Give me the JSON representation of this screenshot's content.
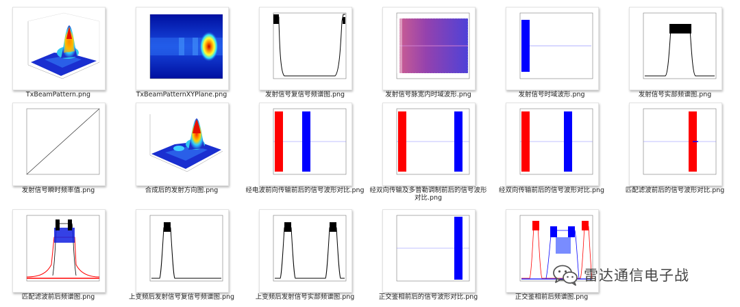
{
  "files": [
    {
      "name": "TxBeamPattern.png",
      "icon": "3d-surface-plot-thumbnail"
    },
    {
      "name": "TxBeamPatternXYPlane.png",
      "icon": "xy-plane-heatmap-thumbnail"
    },
    {
      "name": "发射信号复信号频谱图.png",
      "icon": "spectrum-plot-thumbnail"
    },
    {
      "name": "发射信号脉宽内时域波形.png",
      "icon": "dense-waveform-thumbnail"
    },
    {
      "name": "发射信号时域波形.png",
      "icon": "pulse-waveform-thumbnail"
    },
    {
      "name": "发射信号实部频谱图.png",
      "icon": "spectrum-plot-thumbnail"
    },
    {
      "name": "发射信号瞬时频率值.png",
      "icon": "line-plot-thumbnail"
    },
    {
      "name": "合成后的发射方向图.png",
      "icon": "3d-surface-plot-thumbnail"
    },
    {
      "name": "经电波前向传输前后的信号波形对比.png",
      "icon": "pulse-compare-thumbnail"
    },
    {
      "name": "经双向传输及多普勒调制前后的信号波形对比.png",
      "icon": "pulse-compare-thumbnail"
    },
    {
      "name": "经双向传输前后的信号波形对比.png",
      "icon": "pulse-compare-thumbnail"
    },
    {
      "name": "匹配滤波前后的信号波形对比.png",
      "icon": "pulse-compare-thumbnail"
    },
    {
      "name": "匹配滤波前后频谱图.png",
      "icon": "spectrum-compare-thumbnail"
    },
    {
      "name": "上变频后发射信号复信号频谱图.png",
      "icon": "spectrum-plot-thumbnail"
    },
    {
      "name": "上变频后发射信号实部频谱图.png",
      "icon": "spectrum-plot-thumbnail"
    },
    {
      "name": "正交鉴相前后的信号波形对比.png",
      "icon": "pulse-waveform-thumbnail"
    },
    {
      "name": "正交鉴相前后频谱图.png",
      "icon": "spectrum-compare-thumbnail"
    }
  ],
  "watermark": {
    "text": "雷达通信电子战",
    "icon": "wechat-icon"
  },
  "colors": {
    "red": "#ff0000",
    "blue": "#0000ff",
    "black": "#000000",
    "jetBlue": "#1a2fd0"
  }
}
